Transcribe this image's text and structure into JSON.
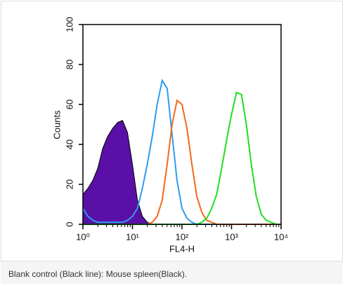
{
  "chart_data": {
    "type": "line",
    "xlabel": "FL4-H",
    "ylabel": "Counts",
    "xscale": "log",
    "xlim": [
      1,
      10000
    ],
    "ylim": [
      0,
      100
    ],
    "xticks": [
      {
        "value": 1,
        "label": "10⁰"
      },
      {
        "value": 10,
        "label": "10¹"
      },
      {
        "value": 100,
        "label": "10²"
      },
      {
        "value": 1000,
        "label": "10³"
      },
      {
        "value": 10000,
        "label": "10⁴"
      }
    ],
    "yticks": [
      0,
      20,
      40,
      60,
      80,
      100
    ],
    "x": [
      1,
      1.259,
      1.585,
      1.995,
      2.512,
      3.162,
      3.981,
      5.012,
      6.31,
      7.943,
      10,
      12.59,
      15.85,
      19.95,
      25.12,
      31.62,
      39.81,
      50.12,
      63.1,
      79.43,
      100,
      125.9,
      158.5,
      199.5,
      251.2,
      316.2,
      398.1,
      501.2,
      631,
      794.3,
      1000,
      1259,
      1585,
      1995,
      2512,
      3162,
      3981,
      5012,
      6310,
      7943,
      10000
    ],
    "series": [
      {
        "color": "#5a10a6",
        "filled": true,
        "values": [
          15,
          18,
          22,
          28,
          38,
          44,
          48,
          51,
          52,
          46,
          30,
          12,
          4,
          1,
          0,
          0,
          0,
          0,
          0,
          0,
          0,
          0,
          0,
          0,
          0,
          0,
          0,
          0,
          0,
          0,
          0,
          0,
          0,
          0,
          0,
          0,
          0,
          0,
          0,
          0,
          0
        ]
      },
      {
        "color": "#2b9cf2",
        "values": [
          8,
          4,
          2,
          1,
          1,
          1,
          1,
          1,
          1,
          2,
          4,
          8,
          18,
          30,
          44,
          60,
          72,
          68,
          45,
          22,
          8,
          3,
          1,
          0,
          0,
          0,
          0,
          0,
          0,
          0,
          0,
          0,
          0,
          0,
          0,
          0,
          0,
          0,
          0,
          0,
          0
        ]
      },
      {
        "color": "#f26a1c",
        "values": [
          0,
          0,
          0,
          0,
          0,
          0,
          0,
          0,
          0,
          0,
          0,
          0,
          0,
          0,
          1,
          4,
          12,
          30,
          50,
          62,
          60,
          48,
          30,
          14,
          6,
          2,
          1,
          0,
          0,
          0,
          0,
          0,
          0,
          0,
          0,
          0,
          0,
          0,
          0,
          0,
          0
        ]
      },
      {
        "color": "#22dd22",
        "values": [
          0,
          0,
          0,
          0,
          0,
          0,
          0,
          0,
          0,
          0,
          0,
          0,
          0,
          0,
          0,
          0,
          0,
          0,
          0,
          0,
          0,
          0,
          0,
          0,
          1,
          3,
          8,
          15,
          28,
          42,
          55,
          66,
          65,
          50,
          30,
          14,
          5,
          2,
          1,
          0,
          0
        ]
      }
    ]
  },
  "caption": "Blank control (Black line): Mouse spleen(Black)."
}
